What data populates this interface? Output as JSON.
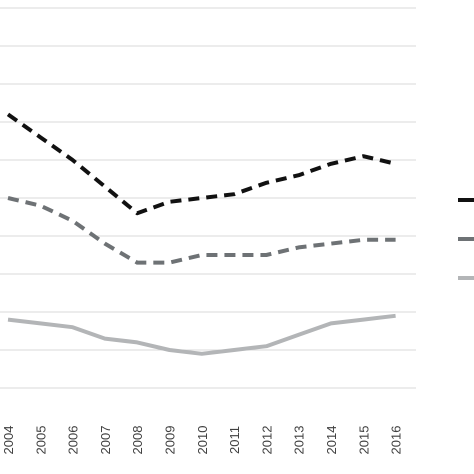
{
  "chart_data": {
    "type": "line",
    "title": "",
    "xlabel": "",
    "ylabel": "",
    "categories": [
      "2004",
      "2005",
      "2006",
      "2007",
      "2008",
      "2009",
      "2010",
      "2011",
      "2012",
      "2013",
      "2014",
      "2015",
      "2016"
    ],
    "grid": true,
    "legend_placement": "right",
    "series": [
      {
        "style": "dashed",
        "color": "#111111",
        "values": [
          7.2,
          6.6,
          6.0,
          5.3,
          4.6,
          4.9,
          5.0,
          5.1,
          5.4,
          5.6,
          5.9,
          6.1,
          5.9
        ]
      },
      {
        "style": "dashed",
        "color": "#6e7275",
        "values": [
          5.0,
          4.8,
          4.4,
          3.8,
          3.3,
          3.3,
          3.5,
          3.5,
          3.5,
          3.7,
          3.8,
          3.9,
          3.9
        ]
      },
      {
        "style": "solid",
        "color": "#b3b5b7",
        "values": [
          1.8,
          1.7,
          1.6,
          1.3,
          1.2,
          1.0,
          0.9,
          1.0,
          1.1,
          1.4,
          1.7,
          1.8,
          1.9
        ]
      }
    ]
  }
}
